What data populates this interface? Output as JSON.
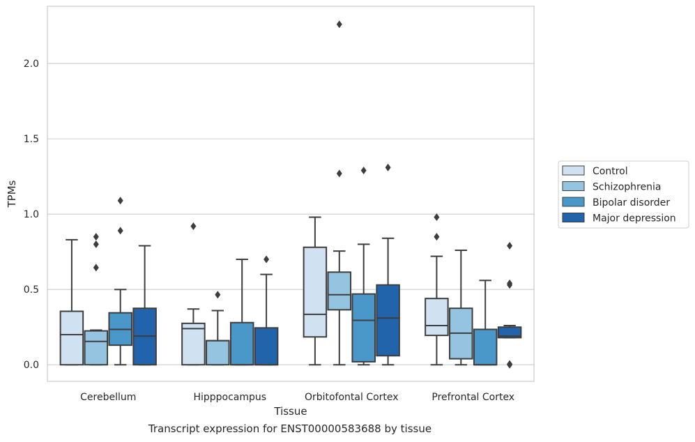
{
  "caption": "Transcript expression for ENST00000583688 by tissue",
  "chart_data": {
    "type": "box",
    "title": "",
    "xlabel": "Tissue",
    "ylabel": "TPMs",
    "ylim": [
      -0.11,
      2.38
    ],
    "yticks": [
      "0.0",
      "0.5",
      "1.0",
      "1.5",
      "2.0"
    ],
    "grid": "horizontal",
    "legend_position": "right",
    "categories": [
      "Cerebellum",
      "Hipppocampus",
      "Orbitofontal Cortex",
      "Prefrontal Cortex"
    ],
    "series": [
      {
        "name": "Control",
        "color": "#d0e1f2",
        "boxes": [
          {
            "whislo": 0.0,
            "q1": 0.0,
            "med": 0.2,
            "q3": 0.355,
            "whishi": 0.83,
            "fliers": []
          },
          {
            "whislo": 0.0,
            "q1": 0.0,
            "med": 0.24,
            "q3": 0.275,
            "whishi": 0.37,
            "fliers": [
              0.92
            ]
          },
          {
            "whislo": 0.0,
            "q1": 0.185,
            "med": 0.335,
            "q3": 0.78,
            "whishi": 0.98,
            "fliers": []
          },
          {
            "whislo": 0.0,
            "q1": 0.195,
            "med": 0.26,
            "q3": 0.44,
            "whishi": 0.72,
            "fliers": [
              0.85,
              0.98
            ]
          }
        ]
      },
      {
        "name": "Schizophrenia",
        "color": "#94c4df",
        "boxes": [
          {
            "whislo": 0.0,
            "q1": 0.0,
            "med": 0.155,
            "q3": 0.225,
            "whishi": 0.23,
            "fliers": [
              0.645,
              0.8,
              0.85
            ]
          },
          {
            "whislo": 0.0,
            "q1": 0.0,
            "med": 0.16,
            "q3": 0.16,
            "whishi": 0.36,
            "fliers": [
              0.465
            ]
          },
          {
            "whislo": 0.0,
            "q1": 0.365,
            "med": 0.465,
            "q3": 0.615,
            "whishi": 0.755,
            "fliers": [
              1.27,
              2.26
            ]
          },
          {
            "whislo": 0.0,
            "q1": 0.04,
            "med": 0.21,
            "q3": 0.375,
            "whishi": 0.76,
            "fliers": []
          }
        ]
      },
      {
        "name": "Bipolar disorder",
        "color": "#4a98c9",
        "boxes": [
          {
            "whislo": 0.0,
            "q1": 0.13,
            "med": 0.235,
            "q3": 0.345,
            "whishi": 0.5,
            "fliers": [
              0.89,
              1.09
            ]
          },
          {
            "whislo": 0.0,
            "q1": 0.0,
            "med": 0.0,
            "q3": 0.28,
            "whishi": 0.7,
            "fliers": []
          },
          {
            "whislo": 0.0,
            "q1": 0.02,
            "med": 0.295,
            "q3": 0.47,
            "whishi": 0.8,
            "fliers": [
              1.29
            ]
          },
          {
            "whislo": 0.0,
            "q1": 0.0,
            "med": 0.0,
            "q3": 0.235,
            "whishi": 0.56,
            "fliers": []
          }
        ]
      },
      {
        "name": "Major depression",
        "color": "#2264ab",
        "boxes": [
          {
            "whislo": 0.0,
            "q1": 0.0,
            "med": 0.19,
            "q3": 0.375,
            "whishi": 0.79,
            "fliers": []
          },
          {
            "whislo": 0.0,
            "q1": 0.0,
            "med": 0.0,
            "q3": 0.245,
            "whishi": 0.6,
            "fliers": [
              0.7
            ]
          },
          {
            "whislo": 0.0,
            "q1": 0.06,
            "med": 0.31,
            "q3": 0.53,
            "whishi": 0.84,
            "fliers": [
              1.31
            ]
          },
          {
            "whislo": 0.18,
            "q1": 0.18,
            "med": 0.19,
            "q3": 0.25,
            "whishi": 0.26,
            "fliers": [
              0.0,
              0.005,
              0.53,
              0.54,
              0.79
            ]
          }
        ]
      }
    ]
  }
}
